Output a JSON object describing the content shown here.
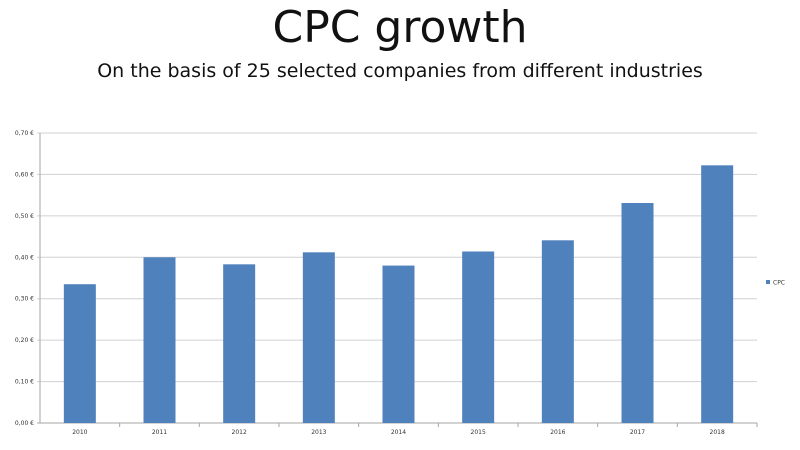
{
  "chart_data": {
    "type": "bar",
    "title": "CPC growth",
    "subtitle": "On the basis of 25 selected companies from different industries",
    "categories": [
      "2010",
      "2011",
      "2012",
      "2013",
      "2014",
      "2015",
      "2016",
      "2017",
      "2018"
    ],
    "series": [
      {
        "name": "CPC",
        "values": [
          0.335,
          0.4,
          0.383,
          0.412,
          0.38,
          0.414,
          0.441,
          0.531,
          0.622
        ]
      }
    ],
    "ylim": [
      0,
      0.7
    ],
    "yticks": [
      {
        "value": 0.0,
        "label": "0,00 €"
      },
      {
        "value": 0.1,
        "label": "0,10 €"
      },
      {
        "value": 0.2,
        "label": "0,20 €"
      },
      {
        "value": 0.3,
        "label": "0,30 €"
      },
      {
        "value": 0.4,
        "label": "0,40 €"
      },
      {
        "value": 0.5,
        "label": "0,50 €"
      },
      {
        "value": 0.6,
        "label": "0,60 €"
      },
      {
        "value": 0.7,
        "label": "0,70 €"
      }
    ],
    "grid": true,
    "legend": "right",
    "bar_color": "#4f81bd",
    "grid_color": "#d0d0d0",
    "axis_color": "#a6a6a6"
  }
}
